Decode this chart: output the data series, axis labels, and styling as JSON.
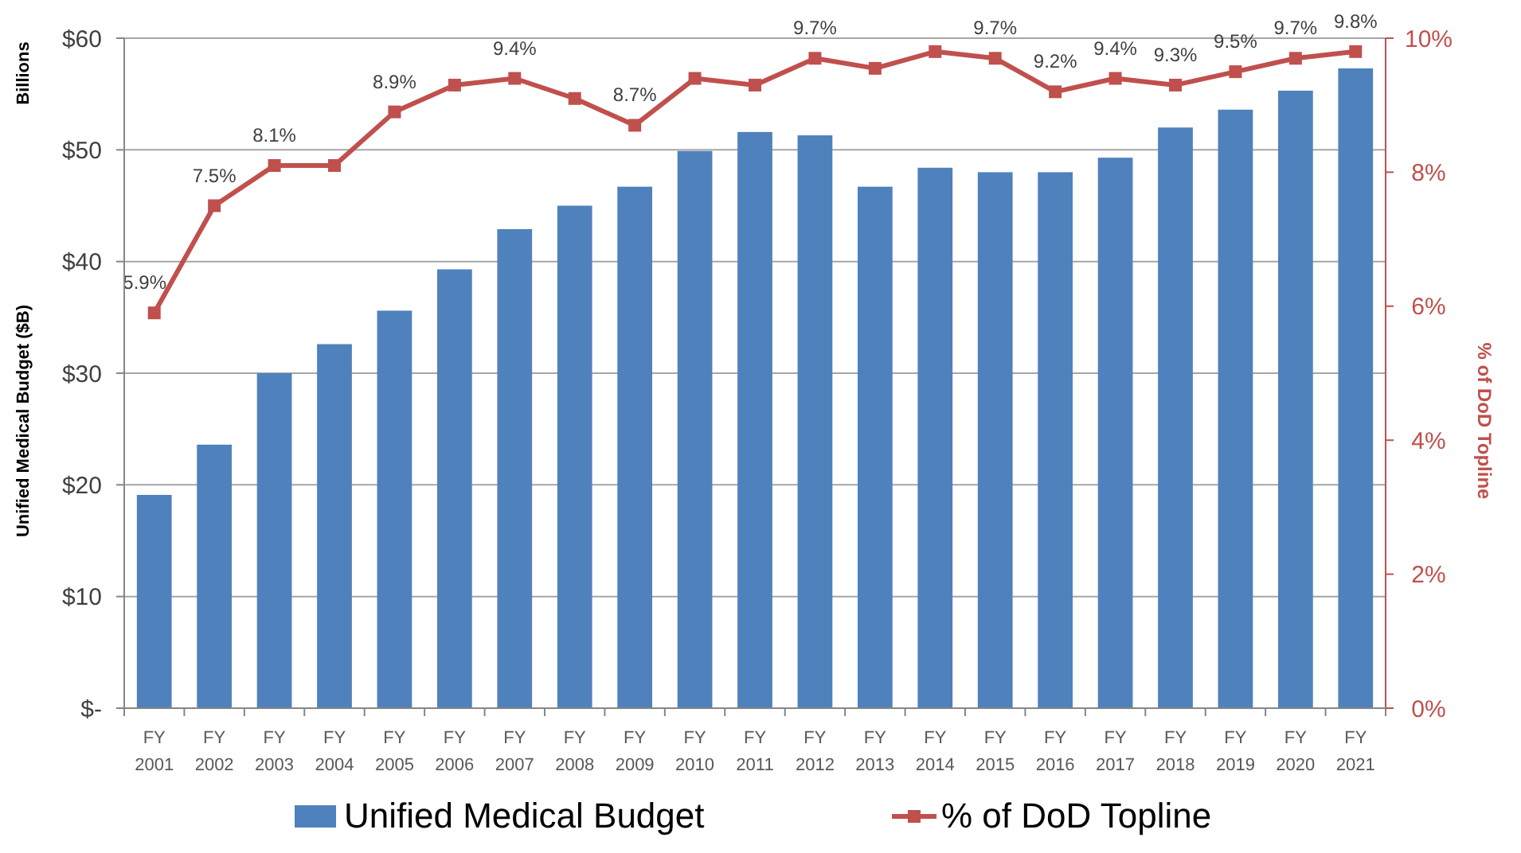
{
  "chart_data": {
    "type": "bar",
    "ylabel": "Unified Medical Budget ($B)",
    "y2label": "% of DoD Topline",
    "annotations": [
      "Billions"
    ],
    "categories": [
      "FY 2001",
      "FY 2002",
      "FY 2003",
      "FY 2004",
      "FY 2005",
      "FY 2006",
      "FY 2007",
      "FY 2008",
      "FY 2009",
      "FY 2010",
      "FY 2011",
      "FY 2012",
      "FY 2013",
      "FY 2014",
      "FY 2015",
      "FY 2016",
      "FY 2017",
      "FY 2018",
      "FY 2019",
      "FY 2020",
      "FY 2021"
    ],
    "series": [
      {
        "name": "Unified Medical Budget",
        "color": "#4f81bd",
        "values": [
          19.1,
          23.6,
          30.0,
          32.6,
          35.6,
          39.3,
          42.9,
          45.0,
          46.7,
          49.9,
          51.6,
          51.3,
          46.7,
          48.4,
          48.0,
          48.0,
          49.3,
          52.0,
          53.6,
          55.3,
          57.3
        ]
      },
      {
        "name": "% of DoD Topline",
        "type": "line",
        "axis": "y2",
        "color": "#c0504d",
        "marker": "square",
        "values": [
          5.9,
          7.5,
          8.1,
          8.1,
          8.9,
          9.3,
          9.4,
          9.1,
          8.7,
          9.4,
          9.3,
          9.7,
          9.55,
          9.8,
          9.7,
          9.2,
          9.4,
          9.3,
          9.5,
          9.7,
          9.8
        ],
        "value_labels": [
          "5.9%",
          "7.5%",
          "8.1%",
          null,
          "8.9%",
          null,
          "9.4%",
          null,
          "8.7%",
          null,
          null,
          "9.7%",
          null,
          null,
          "9.7%",
          "9.2%",
          "9.4%",
          "9.3%",
          "9.5%",
          "9.7%",
          "9.8%"
        ]
      }
    ],
    "ylim": [
      0,
      60
    ],
    "yticks": [
      {
        "value": 0,
        "label": "$-"
      },
      {
        "value": 10,
        "label": "$10"
      },
      {
        "value": 20,
        "label": "$20"
      },
      {
        "value": 30,
        "label": "$30"
      },
      {
        "value": 40,
        "label": "$40"
      },
      {
        "value": 50,
        "label": "$50"
      },
      {
        "value": 60,
        "label": "$60"
      }
    ],
    "y2lim": [
      0,
      10
    ],
    "y2ticks": [
      {
        "value": 0,
        "label": "0%"
      },
      {
        "value": 2,
        "label": "2%"
      },
      {
        "value": 4,
        "label": "4%"
      },
      {
        "value": 6,
        "label": "6%"
      },
      {
        "value": 8,
        "label": "8%"
      },
      {
        "value": 10,
        "label": "10%"
      }
    ],
    "grid": "y",
    "legend": "bottom"
  }
}
